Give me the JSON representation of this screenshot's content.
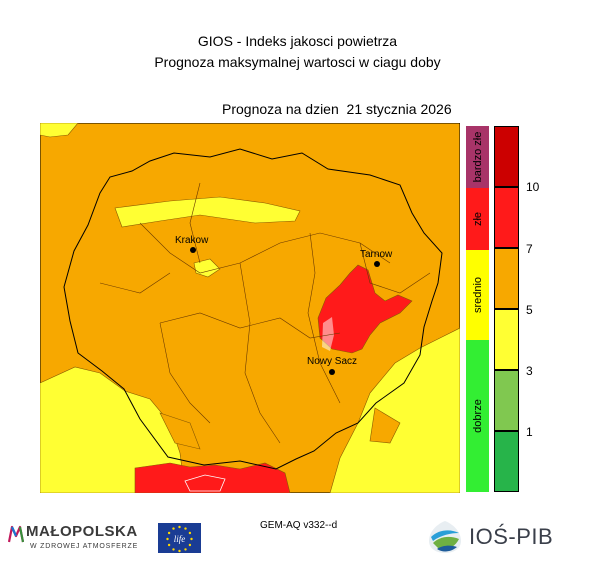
{
  "header": {
    "title": "GIOS - Indeks jakosci powietrza",
    "subtitle": "Prognoza maksymalnej wartosci w ciagu doby",
    "forecast_date": "Prognoza na dzien  21 stycznia 2026"
  },
  "map": {
    "cities": [
      {
        "name": "Krakow"
      },
      {
        "name": "Tarnow"
      },
      {
        "name": "Nowy Sacz"
      }
    ],
    "dominant_category": "srednio",
    "colors": {
      "background_orange": "#f7a800",
      "yellow": "#ffff33",
      "red": "#ff1a1a",
      "dark_red": "#cc0000",
      "light_green": "#80c850",
      "green": "#27b44a"
    }
  },
  "legend_categories": {
    "items": [
      {
        "label": "bardzo złe",
        "color": "#a83468"
      },
      {
        "label": "złe",
        "color": "#ff1a1a"
      },
      {
        "label": "srednio",
        "color": "#ffff00"
      },
      {
        "label": "dobrze",
        "color": "#33ee33"
      }
    ]
  },
  "legend_scale": {
    "bands": [
      {
        "color": "#cc0000"
      },
      {
        "color": "#ff1a1a"
      },
      {
        "color": "#f7a800"
      },
      {
        "color": "#ffff33"
      },
      {
        "color": "#80c850"
      },
      {
        "color": "#27b44a"
      }
    ],
    "ticks": [
      "10",
      "7",
      "5",
      "3",
      "1"
    ]
  },
  "footer": {
    "model": "GEM-AQ v332--d",
    "malopolska_name": "MAŁOPOLSKA",
    "malopolska_tagline": "W ZDROWEJ ATMOSFERZE",
    "life_text": "life",
    "institute": "IOŚ-PIB"
  }
}
